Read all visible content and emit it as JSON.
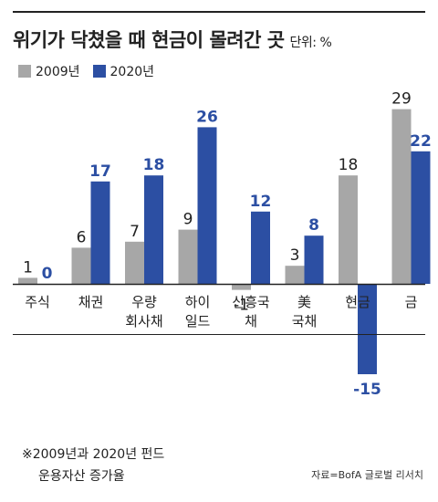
{
  "header": {
    "title": "위기가 닥쳤을 때 현금이 몰려간 곳",
    "unit": "단위: %"
  },
  "colors": {
    "series_2009": "#a7a7a7",
    "series_2020": "#2c4fa3",
    "axis": "#222222"
  },
  "chart_data": {
    "type": "bar",
    "categories": [
      [
        "주식"
      ],
      [
        "채권"
      ],
      [
        "우량",
        "회사채"
      ],
      [
        "하이",
        "일드"
      ],
      [
        "신흥국",
        "채"
      ],
      [
        "美",
        "국채"
      ],
      [
        "현금"
      ],
      [
        "금"
      ]
    ],
    "series": [
      {
        "name": "2009년",
        "values": [
          1,
          6,
          7,
          9,
          -1,
          3,
          18,
          29
        ]
      },
      {
        "name": "2020년",
        "values": [
          0,
          17,
          18,
          26,
          12,
          8,
          -15,
          22
        ]
      }
    ],
    "xlabel": "",
    "ylabel": "",
    "ylim": [
      -15,
      29
    ],
    "grid": false,
    "legend": "top-left"
  },
  "footnote": {
    "line1": "※2009년과 2020년 펀드",
    "line2": "운용자산 증가율"
  },
  "source": "자료=BofA 글로벌 리서치"
}
